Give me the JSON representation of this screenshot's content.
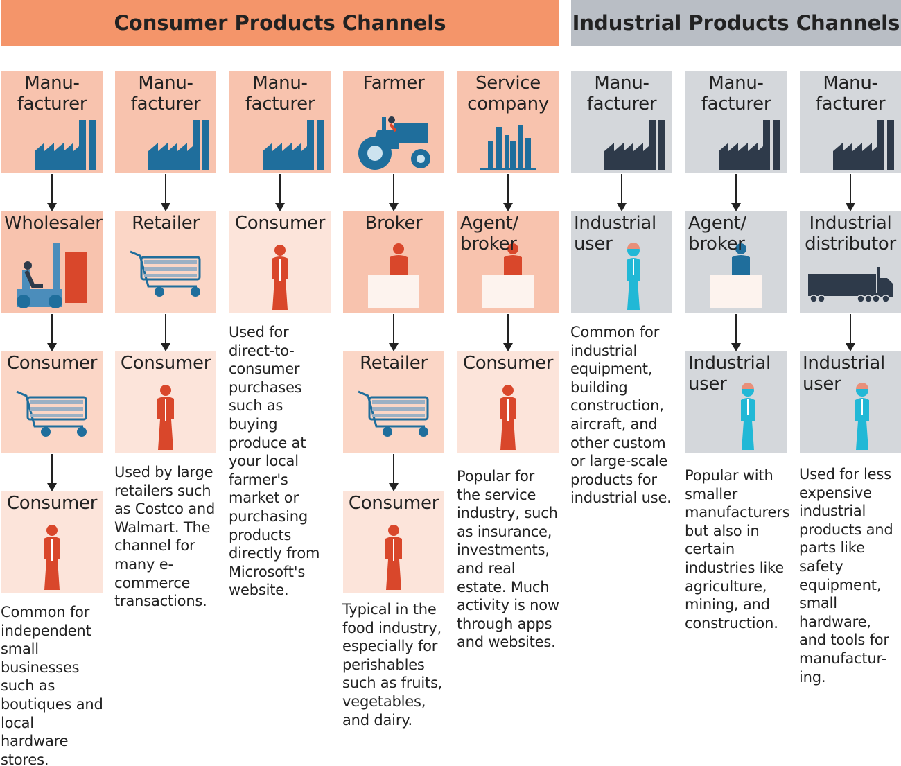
{
  "headers": {
    "consumer": "Consumer Products Channels",
    "industrial": "Industrial Products Channels"
  },
  "colors": {
    "consumer_header": "#f4956a",
    "industrial_header": "#b9bec5",
    "salmon": "#f8c3ae",
    "light": "#fbd6c6",
    "pale": "#fce4da",
    "gray": "#d4d7db"
  },
  "columns": [
    {
      "boxes": [
        {
          "label": "Manu-\nfacturer",
          "icon": "factory",
          "tone": "salmon"
        },
        {
          "label": "Wholesaler",
          "icon": "forklift",
          "tone": "salmon"
        },
        {
          "label": "Consumer",
          "icon": "cart",
          "tone": "light"
        },
        {
          "label": "Consumer",
          "icon": "person",
          "tone": "pale"
        }
      ],
      "description": "Common for independent small businesses such as boutiques and local hardware stores."
    },
    {
      "boxes": [
        {
          "label": "Manu-\nfacturer",
          "icon": "factory",
          "tone": "salmon"
        },
        {
          "label": "Retailer",
          "icon": "cart",
          "tone": "light"
        },
        {
          "label": "Consumer",
          "icon": "person",
          "tone": "pale"
        }
      ],
      "description": "Used by large retailers such as Costco and Walmart. The channel for many e-commerce transactions."
    },
    {
      "boxes": [
        {
          "label": "Manu-\nfacturer",
          "icon": "factory",
          "tone": "salmon"
        },
        {
          "label": "Consumer",
          "icon": "person",
          "tone": "pale"
        }
      ],
      "description": "Used for direct-to-consumer purchases such as buying produce at your local farmer's market or purchasing products directly from Microsoft's website."
    },
    {
      "boxes": [
        {
          "label": "Farmer",
          "icon": "tractor",
          "tone": "salmon"
        },
        {
          "label": "Broker",
          "icon": "broker",
          "tone": "salmon"
        },
        {
          "label": "Retailer",
          "icon": "cart",
          "tone": "light"
        },
        {
          "label": "Consumer",
          "icon": "person",
          "tone": "pale"
        }
      ],
      "description": "Typical in the food industry, especially for perishables such as fruits, vegetables, and dairy."
    },
    {
      "boxes": [
        {
          "label": "Service\ncompany",
          "icon": "bars",
          "tone": "salmon"
        },
        {
          "label": "Agent/\nbroker",
          "icon": "broker",
          "tone": "salmon",
          "align": "left"
        },
        {
          "label": "Consumer",
          "icon": "person",
          "tone": "pale"
        }
      ],
      "description": "Popular for the service industry, such as insurance, investments, and real estate. Much activity is now through apps and websites."
    },
    {
      "boxes": [
        {
          "label": "Manu-\nfacturer",
          "icon": "factory-dark",
          "tone": "gray"
        },
        {
          "label": "Industrial\nuser",
          "icon": "worker",
          "tone": "gray",
          "align": "left"
        }
      ],
      "description": "Common for industrial equipment, building construction, aircraft, and other custom or large-scale products for industrial use."
    },
    {
      "boxes": [
        {
          "label": "Manu-\nfacturer",
          "icon": "factory-dark",
          "tone": "gray"
        },
        {
          "label": "Agent/\nbroker",
          "icon": "broker-blue",
          "tone": "gray",
          "align": "left"
        },
        {
          "label": "Industrial\nuser",
          "icon": "worker",
          "tone": "gray",
          "align": "left"
        }
      ],
      "description": "Popular with smaller manufacturers but also in certain industries like agriculture, mining, and construction."
    },
    {
      "boxes": [
        {
          "label": "Manu-\nfacturer",
          "icon": "factory-dark",
          "tone": "gray"
        },
        {
          "label": "Industrial\ndistributor",
          "icon": "truck",
          "tone": "gray"
        },
        {
          "label": "Industrial\nuser",
          "icon": "worker",
          "tone": "gray",
          "align": "left"
        }
      ],
      "description": "Used for less expensive industrial products and parts like safety equipment, small hardware, and tools for manufactur-ing."
    }
  ]
}
